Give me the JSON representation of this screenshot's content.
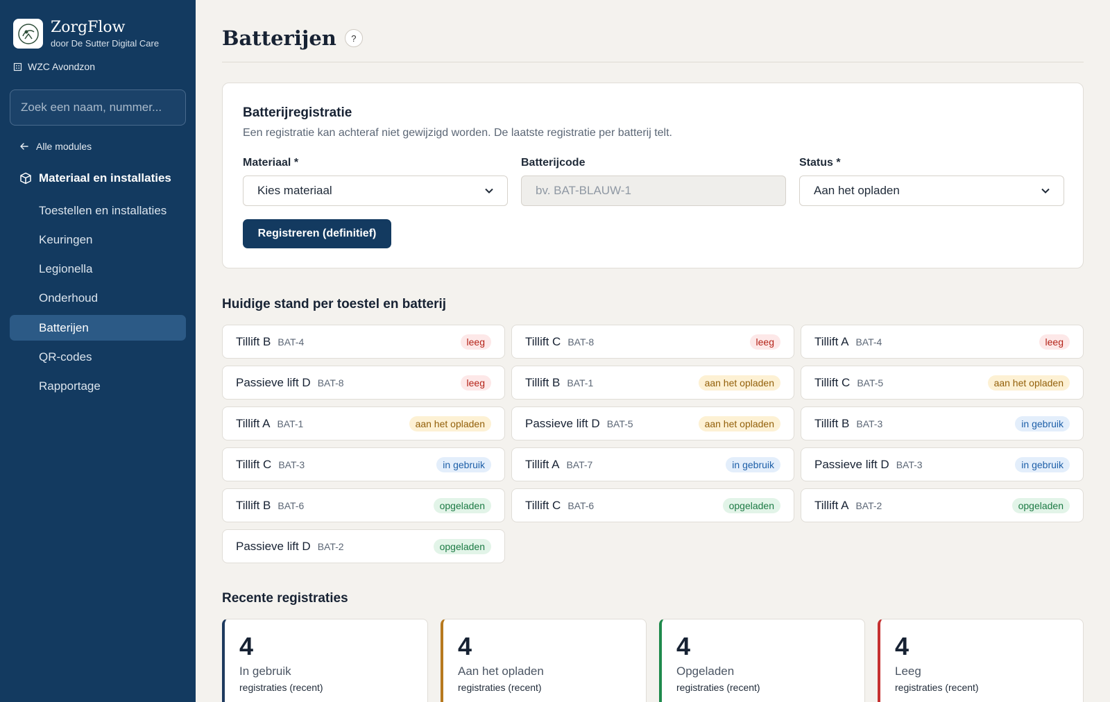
{
  "sidebar": {
    "brand_name": "ZorgFlow",
    "brand_sub": "door De Sutter Digital Care",
    "org": "WZC Avondzon",
    "search_placeholder": "Zoek een naam, nummer...",
    "back": "Alle modules",
    "section": "Materiaal en installaties",
    "items": [
      {
        "label": "Toestellen en installaties"
      },
      {
        "label": "Keuringen"
      },
      {
        "label": "Legionella"
      },
      {
        "label": "Onderhoud"
      },
      {
        "label": "Batterijen",
        "active": true
      },
      {
        "label": "QR-codes"
      },
      {
        "label": "Rapportage"
      }
    ]
  },
  "page": {
    "title": "Batterijen",
    "help": "?"
  },
  "form": {
    "title": "Batterijregistratie",
    "description": "Een registratie kan achteraf niet gewijzigd worden. De laatste registratie per batterij telt.",
    "material_label": "Materiaal *",
    "material_value": "Kies materiaal",
    "code_label": "Batterijcode",
    "code_placeholder": "bv. BAT-BLAUW-1",
    "status_label": "Status *",
    "status_value": "Aan het opladen",
    "submit": "Registreren (definitief)"
  },
  "current": {
    "title": "Huidige stand per toestel en batterij",
    "tiles": [
      {
        "device": "Tillift B",
        "code": "BAT-4",
        "status": "leeg",
        "kind": "leeg"
      },
      {
        "device": "Tillift C",
        "code": "BAT-8",
        "status": "leeg",
        "kind": "leeg"
      },
      {
        "device": "Tillift A",
        "code": "BAT-4",
        "status": "leeg",
        "kind": "leeg"
      },
      {
        "device": "Passieve lift D",
        "code": "BAT-8",
        "status": "leeg",
        "kind": "leeg"
      },
      {
        "device": "Tillift B",
        "code": "BAT-1",
        "status": "aan het opladen",
        "kind": "laden"
      },
      {
        "device": "Tillift C",
        "code": "BAT-5",
        "status": "aan het opladen",
        "kind": "laden"
      },
      {
        "device": "Tillift A",
        "code": "BAT-1",
        "status": "aan het opladen",
        "kind": "laden"
      },
      {
        "device": "Passieve lift D",
        "code": "BAT-5",
        "status": "aan het opladen",
        "kind": "laden"
      },
      {
        "device": "Tillift B",
        "code": "BAT-3",
        "status": "in gebruik",
        "kind": "gebruik"
      },
      {
        "device": "Tillift C",
        "code": "BAT-3",
        "status": "in gebruik",
        "kind": "gebruik"
      },
      {
        "device": "Tillift A",
        "code": "BAT-7",
        "status": "in gebruik",
        "kind": "gebruik"
      },
      {
        "device": "Passieve lift D",
        "code": "BAT-3",
        "status": "in gebruik",
        "kind": "gebruik"
      },
      {
        "device": "Tillift B",
        "code": "BAT-6",
        "status": "opgeladen",
        "kind": "op"
      },
      {
        "device": "Tillift C",
        "code": "BAT-6",
        "status": "opgeladen",
        "kind": "op"
      },
      {
        "device": "Tillift A",
        "code": "BAT-2",
        "status": "opgeladen",
        "kind": "op"
      },
      {
        "device": "Passieve lift D",
        "code": "BAT-2",
        "status": "opgeladen",
        "kind": "op"
      }
    ]
  },
  "recent": {
    "title": "Recente registraties",
    "stats": [
      {
        "count": "4",
        "label": "In gebruik",
        "sub": "registraties (recent)",
        "color": "#1e3a5f"
      },
      {
        "count": "4",
        "label": "Aan het opladen",
        "sub": "registraties (recent)",
        "color": "#b7791f"
      },
      {
        "count": "4",
        "label": "Opgeladen",
        "sub": "registraties (recent)",
        "color": "#1f8a4c"
      },
      {
        "count": "4",
        "label": "Leeg",
        "sub": "registraties (recent)",
        "color": "#c53030"
      }
    ]
  }
}
